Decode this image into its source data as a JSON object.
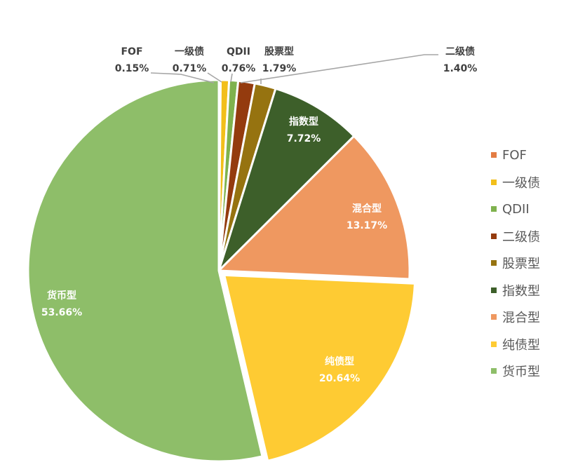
{
  "chart_data": {
    "type": "pie",
    "title": "",
    "legend_position": "right",
    "slices": [
      {
        "label": "FOF",
        "value": 0.15,
        "display": "0.15%",
        "color": "#E37C43"
      },
      {
        "label": "一级债",
        "value": 0.71,
        "display": "0.71%",
        "color": "#F2BF1B"
      },
      {
        "label": "QDII",
        "value": 0.76,
        "display": "0.76%",
        "color": "#7FB24E"
      },
      {
        "label": "二级债",
        "value": 1.4,
        "display": "1.40%",
        "color": "#943B0E"
      },
      {
        "label": "股票型",
        "value": 1.79,
        "display": "1.79%",
        "color": "#967310"
      },
      {
        "label": "指数型",
        "value": 7.72,
        "display": "7.72%",
        "color": "#3D5F2A"
      },
      {
        "label": "混合型",
        "value": 13.17,
        "display": "13.17%",
        "color": "#EF9860"
      },
      {
        "label": "纯债型",
        "value": 20.64,
        "display": "20.64%",
        "color": "#FECB33"
      },
      {
        "label": "货币型",
        "value": 53.66,
        "display": "53.66%",
        "color": "#8EBE69"
      }
    ]
  }
}
